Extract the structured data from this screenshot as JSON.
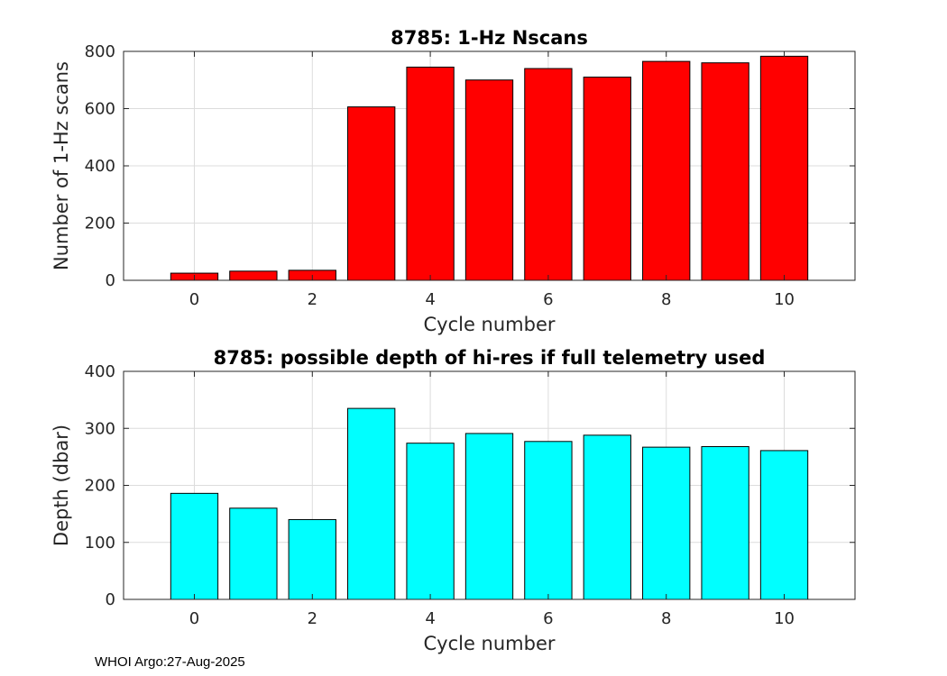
{
  "chart_data": [
    {
      "type": "bar",
      "title": "8785: 1-Hz Nscans",
      "xlabel": "Cycle number",
      "ylabel": "Number of 1-Hz scans",
      "x": [
        0,
        1,
        2,
        3,
        4,
        5,
        6,
        7,
        8,
        9,
        10
      ],
      "values": [
        25,
        32,
        35,
        606,
        745,
        700,
        740,
        710,
        765,
        760,
        783
      ],
      "xlim": [
        -1.2,
        11.2
      ],
      "ylim": [
        0,
        800
      ],
      "xticks": [
        0,
        2,
        4,
        6,
        8,
        10
      ],
      "yticks": [
        0,
        200,
        400,
        600,
        800
      ],
      "grid": true,
      "color": "#ff0000"
    },
    {
      "type": "bar",
      "title": "8785: possible depth of hi-res if full telemetry used",
      "xlabel": "Cycle number",
      "ylabel": "Depth (dbar)",
      "x": [
        0,
        1,
        2,
        3,
        4,
        5,
        6,
        7,
        8,
        9,
        10
      ],
      "values": [
        186,
        160,
        140,
        335,
        274,
        291,
        277,
        288,
        267,
        268,
        261
      ],
      "xlim": [
        -1.2,
        11.2
      ],
      "ylim": [
        0,
        400
      ],
      "xticks": [
        0,
        2,
        4,
        6,
        8,
        10
      ],
      "yticks": [
        0,
        100,
        200,
        300,
        400
      ],
      "grid": true,
      "color": "#00ffff"
    }
  ],
  "footer": "WHOI Argo:27-Aug-2025"
}
